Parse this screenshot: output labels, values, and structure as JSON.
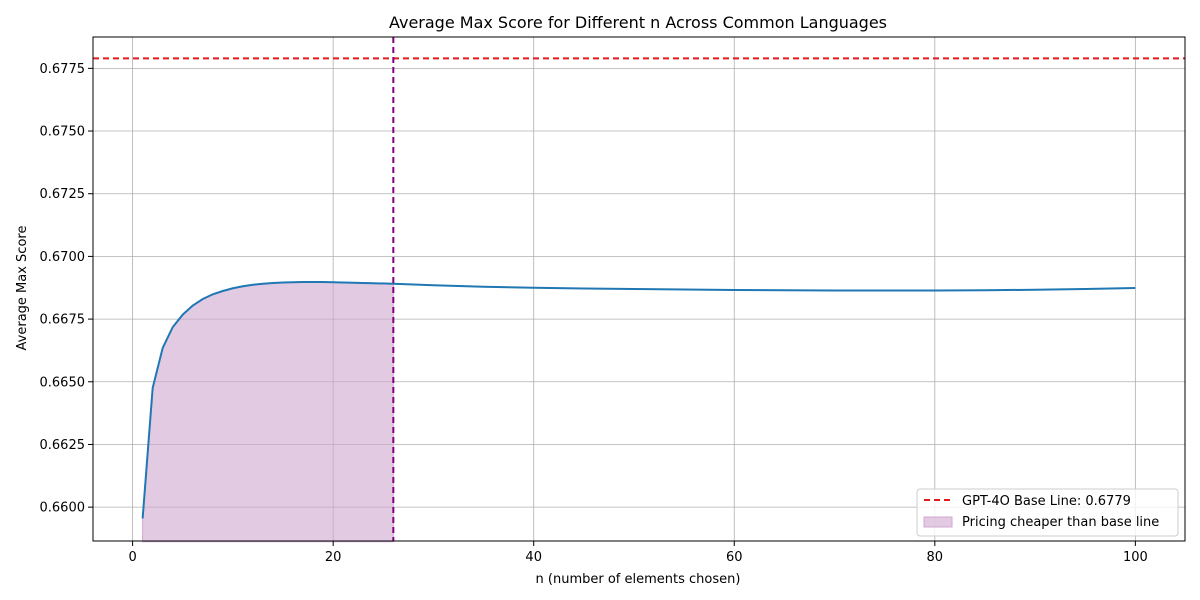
{
  "chart_data": {
    "type": "line",
    "title": "Average Max Score for Different n Across Common Languages",
    "xlabel": "n (number of elements chosen)",
    "ylabel": "Average Max Score",
    "xlim": [
      -3.95,
      104.95
    ],
    "ylim": [
      0.65865,
      0.67875
    ],
    "xticks": [
      0,
      20,
      40,
      60,
      80,
      100
    ],
    "xtick_labels": [
      "0",
      "20",
      "40",
      "60",
      "80",
      "100"
    ],
    "yticks": [
      0.66,
      0.6625,
      0.665,
      0.6675,
      0.67,
      0.6725,
      0.675,
      0.6775
    ],
    "ytick_labels": [
      "0.6600",
      "0.6625",
      "0.6650",
      "0.6675",
      "0.6700",
      "0.6725",
      "0.6750",
      "0.6775"
    ],
    "grid": true,
    "legend_position": "lower-right",
    "series": [
      {
        "color": "#1f77b4",
        "x": [
          1,
          2,
          3,
          4,
          5,
          6,
          7,
          8,
          9,
          10,
          11,
          12,
          13,
          14,
          15,
          16,
          17,
          18,
          19,
          20,
          22,
          24,
          26,
          28,
          30,
          35,
          40,
          45,
          50,
          55,
          60,
          65,
          70,
          75,
          80,
          85,
          90,
          95,
          100
        ],
        "y": [
          0.65955,
          0.66475,
          0.66635,
          0.66718,
          0.66768,
          0.66804,
          0.6683,
          0.66849,
          0.66862,
          0.66873,
          0.66881,
          0.66887,
          0.66891,
          0.66894,
          0.66896,
          0.66897,
          0.66898,
          0.66898,
          0.66898,
          0.66897,
          0.66895,
          0.66893,
          0.66891,
          0.66888,
          0.66885,
          0.66879,
          0.66875,
          0.66872,
          0.6687,
          0.66868,
          0.66866,
          0.66865,
          0.66864,
          0.66864,
          0.66864,
          0.66865,
          0.66867,
          0.6687,
          0.66874
        ]
      }
    ],
    "baseline": {
      "label": "GPT-4O Base Line: 0.6779",
      "value": 0.6779,
      "color": "#e41a1c"
    },
    "cutoff": {
      "x": 26,
      "color": "#800080"
    },
    "shaded_region": {
      "label": "Pricing cheaper than base line",
      "x_start": 1,
      "x_end": 26,
      "y_bottom": 0.65862,
      "color": "#d1a7d1"
    }
  }
}
